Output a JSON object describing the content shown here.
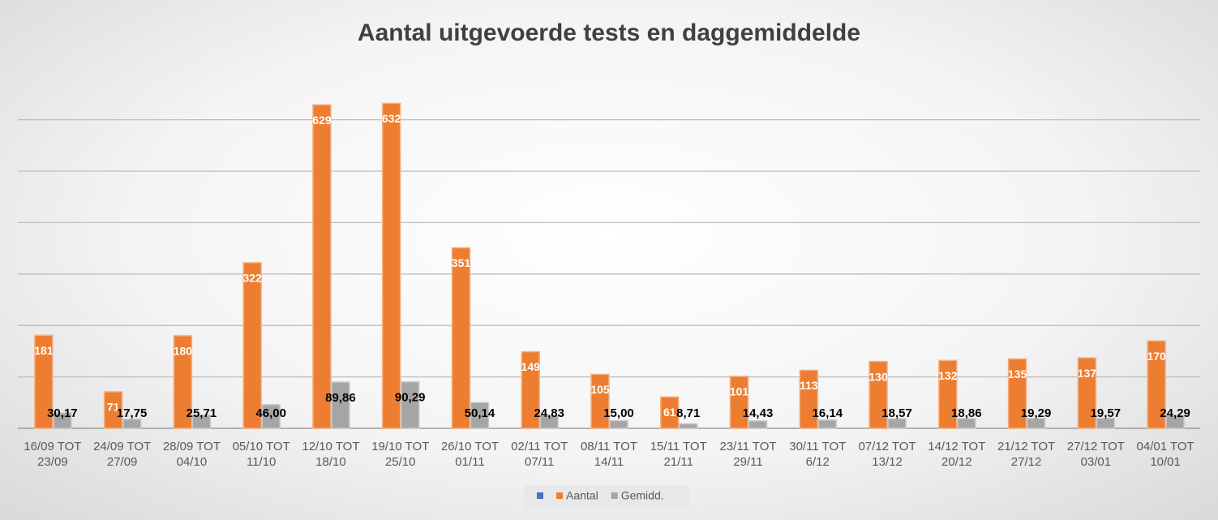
{
  "chart_data": {
    "type": "bar",
    "title": "Aantal uitgevoerde tests en daggemiddelde",
    "categories": [
      "16/09 TOT 23/09",
      "24/09 TOT 27/09",
      "28/09 TOT 04/10",
      "05/10 TOT 11/10",
      "12/10 TOT 18/10",
      "19/10 TOT 25/10",
      "26/10 TOT 01/11",
      "02/11 TOT 07/11",
      "08/11 TOT 14/11",
      "15/11 TOT 21/11",
      "23/11 TOT 29/11",
      "30/11 TOT 6/12",
      "07/12 TOT 13/12",
      "14/12 TOT 20/12",
      "21/12 TOT 27/12",
      "27/12 TOT 03/01",
      "04/01 TOT 10/01"
    ],
    "series": [
      {
        "name": null,
        "color": "#4472c4",
        "values": [
          null,
          null,
          null,
          null,
          null,
          null,
          null,
          null,
          null,
          null,
          null,
          null,
          null,
          null,
          null,
          null,
          null
        ]
      },
      {
        "name": "Aantal",
        "color": "#ed7d31",
        "values": [
          181,
          71,
          180,
          322,
          629,
          632,
          351,
          149,
          105,
          61,
          101,
          113,
          130,
          132,
          135,
          137,
          170
        ]
      },
      {
        "name": "Gemidd.",
        "color": "#a5a5a5",
        "values": [
          30.17,
          17.75,
          25.71,
          46.0,
          89.86,
          90.29,
          50.14,
          24.83,
          15.0,
          8.71,
          14.43,
          16.14,
          18.57,
          18.86,
          19.29,
          19.57,
          24.29
        ],
        "value_labels": [
          "30,17",
          "17,75",
          "25,71",
          "46,00",
          "89,86",
          "90,29",
          "50,14",
          "24,83",
          "15,00",
          "8,71",
          "14,43",
          "16,14",
          "18,57",
          "18,86",
          "19,29",
          "19,57",
          "24,29"
        ]
      }
    ],
    "ylim": [
      0,
      700
    ],
    "yticks": [
      0,
      100,
      200,
      300,
      400,
      500,
      600
    ],
    "grid": true
  }
}
